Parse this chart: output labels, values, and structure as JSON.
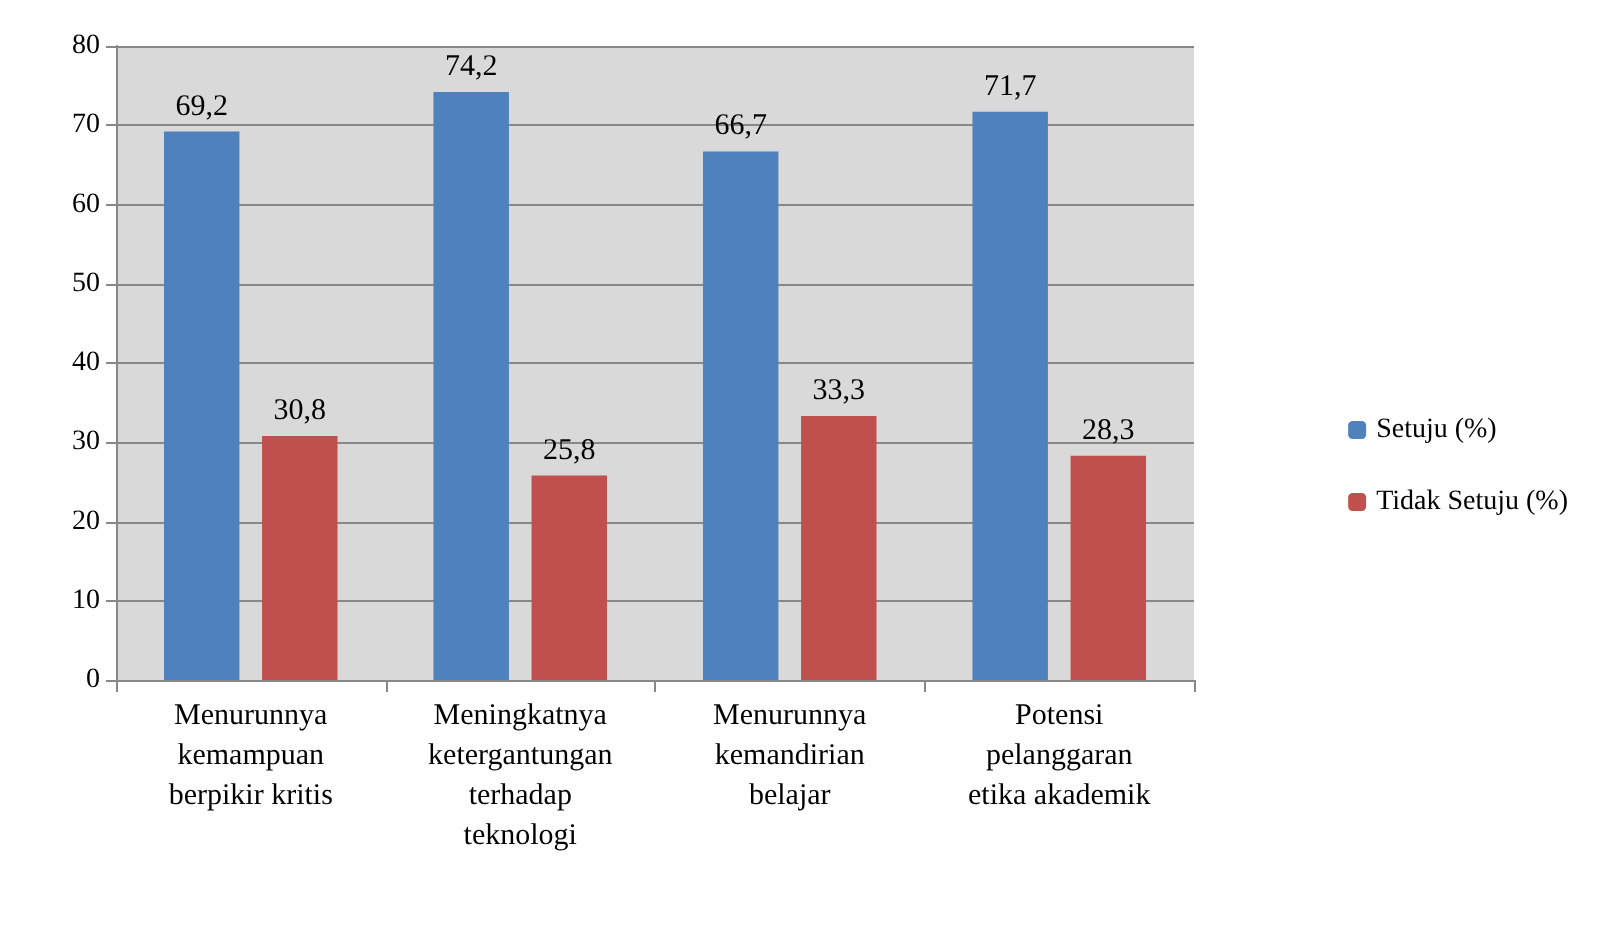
{
  "chart_data": {
    "type": "bar",
    "categories": [
      "Menurunnya\nkemampuan\nberpikir kritis",
      "Meningkatnya\nketergantungan\nterhadap\nteknologi",
      "Menurunnya\nkemandirian\nbelajar",
      "Potensi\npelanggaran\netika akademik"
    ],
    "series": [
      {
        "name": "Setuju (%)",
        "color": "#4f81bd",
        "values": [
          69.2,
          74.2,
          66.7,
          71.7
        ],
        "value_labels": [
          "69,2",
          "74,2",
          "66,7",
          "71,7"
        ]
      },
      {
        "name": "Tidak Setuju (%)",
        "color": "#c0504d",
        "values": [
          30.8,
          25.8,
          33.3,
          28.3
        ],
        "value_labels": [
          "30,8",
          "25,8",
          "33,3",
          "28,3"
        ]
      }
    ],
    "ylim": [
      0,
      80
    ],
    "yticks": [
      0,
      10,
      20,
      30,
      40,
      50,
      60,
      70,
      80
    ],
    "grid": "y",
    "legend": "right"
  }
}
